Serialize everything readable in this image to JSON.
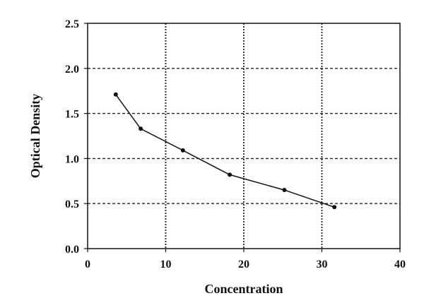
{
  "chart_data": {
    "type": "line",
    "xlabel": "Concentration",
    "ylabel": "Optical Density",
    "xlim": [
      0,
      40
    ],
    "ylim": [
      0,
      2.5
    ],
    "x_ticks": [
      0,
      10,
      20,
      30,
      40
    ],
    "y_ticks": [
      0.0,
      0.5,
      1.0,
      1.5,
      2.0,
      2.5
    ],
    "x_tick_labels": [
      "0",
      "10",
      "20",
      "30",
      "40"
    ],
    "y_tick_labels": [
      "0.0",
      "0.5",
      "1.0",
      "1.5",
      "2.0",
      "2.5"
    ],
    "grid": true,
    "legend": "none",
    "series": [
      {
        "color": "#111111",
        "points": [
          {
            "x": 3.6,
            "y": 1.71
          },
          {
            "x": 6.8,
            "y": 1.33
          },
          {
            "x": 12.2,
            "y": 1.09
          },
          {
            "x": 18.2,
            "y": 0.82
          },
          {
            "x": 25.2,
            "y": 0.65
          },
          {
            "x": 31.6,
            "y": 0.46
          }
        ]
      }
    ]
  }
}
